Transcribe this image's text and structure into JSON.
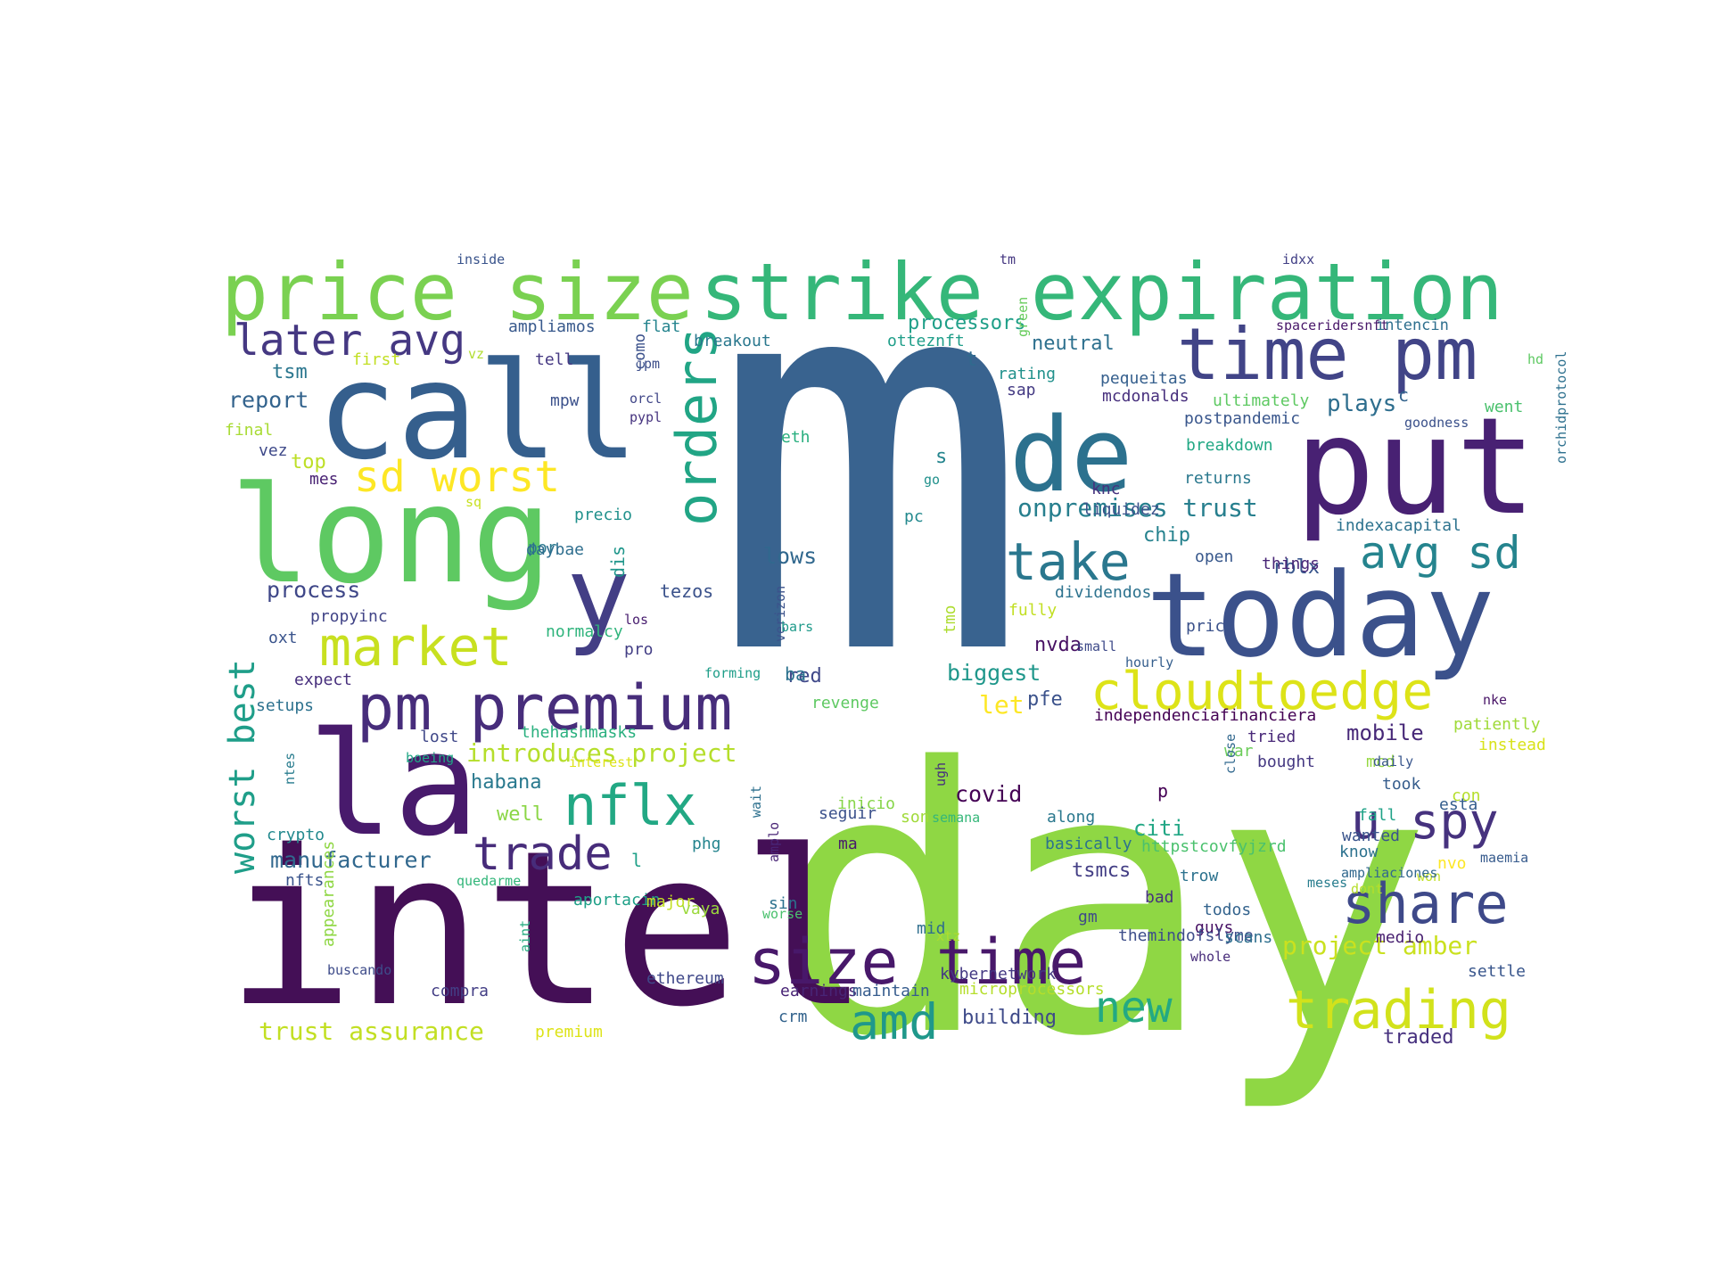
{
  "words": [
    {
      "text": "m",
      "color": "#39638f"
    },
    {
      "text": "day",
      "color": "#8fd744"
    },
    {
      "text": "intel",
      "color": "#440f56"
    },
    {
      "text": "call",
      "color": "#355f8d"
    },
    {
      "text": "long",
      "color": "#5ec962"
    },
    {
      "text": "la",
      "color": "#481a6c"
    },
    {
      "text": "put",
      "color": "#482173"
    },
    {
      "text": "today",
      "color": "#3b518b"
    },
    {
      "text": "de",
      "color": "#2c718e"
    },
    {
      "text": "y",
      "color": "#433e85"
    },
    {
      "text": "price size",
      "color": "#7ad151"
    },
    {
      "text": "strike expiration",
      "color": "#35b779"
    },
    {
      "text": "time pm",
      "color": "#414487"
    },
    {
      "text": "pm premium",
      "color": "#472d7b"
    },
    {
      "text": "size time",
      "color": "#48186a"
    },
    {
      "text": "market",
      "color": "#c8e020"
    },
    {
      "text": "orders",
      "color": "#21a585"
    },
    {
      "text": "cloudtoedge",
      "color": "#dde318"
    },
    {
      "text": "trading",
      "color": "#d2e21b"
    },
    {
      "text": "share",
      "color": "#3e4989"
    },
    {
      "text": "nflx",
      "color": "#22a884"
    },
    {
      "text": "trade",
      "color": "#472c7a"
    },
    {
      "text": "take",
      "color": "#2a778e"
    },
    {
      "text": "avg sd",
      "color": "#25848e"
    },
    {
      "text": "u spy",
      "color": "#46327e"
    },
    {
      "text": "amd",
      "color": "#1f988b"
    },
    {
      "text": "new",
      "color": "#23a983"
    },
    {
      "text": "later avg",
      "color": "#453882"
    },
    {
      "text": "sd worst",
      "color": "#fde725"
    },
    {
      "text": "worst best",
      "color": "#1f9e89"
    },
    {
      "text": "onpremises trust",
      "color": "#277f8e"
    },
    {
      "text": "introduces project",
      "color": "#b5de2b"
    },
    {
      "text": "project amber",
      "color": "#cae11f"
    },
    {
      "text": "trust assurance",
      "color": "#c2df23"
    },
    {
      "text": "manufacturer",
      "color": "#31688e"
    },
    {
      "text": "process",
      "color": "#3f4788"
    },
    {
      "text": "report",
      "color": "#33638d"
    },
    {
      "text": "tsm",
      "color": "#2a768e"
    },
    {
      "text": "top",
      "color": "#bddf26"
    },
    {
      "text": "processors",
      "color": "#1f9f88"
    },
    {
      "text": "neutral",
      "color": "#2d708e"
    },
    {
      "text": "covid",
      "color": "#440154"
    },
    {
      "text": "biggest",
      "color": "#1f978b"
    },
    {
      "text": "lows",
      "color": "#31688e"
    },
    {
      "text": "chip",
      "color": "#26828e"
    },
    {
      "text": "rblx",
      "color": "#39568c"
    },
    {
      "text": "nvda",
      "color": "#471063"
    },
    {
      "text": "pfe",
      "color": "#3b528b"
    },
    {
      "text": "let",
      "color": "#fde725"
    },
    {
      "text": "plays",
      "color": "#2e6e8e"
    },
    {
      "text": "mobile",
      "color": "#472878"
    },
    {
      "text": "habana",
      "color": "#29798e"
    },
    {
      "text": "well",
      "color": "#8bd646"
    },
    {
      "text": "citi",
      "color": "#22a785"
    },
    {
      "text": "red",
      "color": "#3f4889"
    },
    {
      "text": "tsmcs",
      "color": "#433e85"
    },
    {
      "text": "traded",
      "color": "#46307e"
    },
    {
      "text": "building",
      "color": "#3e4a89"
    },
    {
      "text": "ba",
      "color": "#2c728e"
    },
    {
      "text": "dis",
      "color": "#1f968b"
    },
    {
      "text": "tezos",
      "color": "#3b528b"
    },
    {
      "text": "t",
      "color": "#306a8e"
    },
    {
      "text": "s",
      "color": "#25858e"
    },
    {
      "text": "c",
      "color": "#33638d"
    },
    {
      "text": "p",
      "color": "#440154"
    },
    {
      "text": "l",
      "color": "#1fa088"
    },
    {
      "text": "inside",
      "color": "#3a548c"
    },
    {
      "text": "vz",
      "color": "#b0dd2f"
    },
    {
      "text": "tm",
      "color": "#453781"
    },
    {
      "text": "idxx",
      "color": "#424086"
    },
    {
      "text": "green",
      "color": "#67cc5c"
    },
    {
      "text": "spaceridersnft",
      "color": "#481769"
    },
    {
      "text": "intencin",
      "color": "#2e6f8e"
    },
    {
      "text": "ampliamos",
      "color": "#38598c"
    },
    {
      "text": "flat",
      "color": "#25848e"
    },
    {
      "text": "como",
      "color": "#3b518b"
    },
    {
      "text": "breakout",
      "color": "#2a788e"
    },
    {
      "text": "otteznft",
      "color": "#1f9e89"
    },
    {
      "text": "tell",
      "color": "#453882"
    },
    {
      "text": "first",
      "color": "#c2df23"
    },
    {
      "text": "jpm",
      "color": "#3d4e8a"
    },
    {
      "text": "rating",
      "color": "#21918c"
    },
    {
      "text": "sap",
      "color": "#443a83"
    },
    {
      "text": "pequeitas",
      "color": "#355f8d"
    },
    {
      "text": "hd",
      "color": "#5ec962"
    },
    {
      "text": "mpw",
      "color": "#3b518b"
    },
    {
      "text": "orcl",
      "color": "#404688"
    },
    {
      "text": "pypl",
      "color": "#46337f"
    },
    {
      "text": "mcdonalds",
      "color": "#472f7d"
    },
    {
      "text": "ultimately",
      "color": "#5ec962"
    },
    {
      "text": "went",
      "color": "#4ac16d"
    },
    {
      "text": "orchidprotocol",
      "color": "#2d708e"
    },
    {
      "text": "final",
      "color": "#a8db34"
    },
    {
      "text": "eth",
      "color": "#29af7f"
    },
    {
      "text": "postpandemic",
      "color": "#39568c"
    },
    {
      "text": "goodness",
      "color": "#3b518b"
    },
    {
      "text": "vez",
      "color": "#3e4989"
    },
    {
      "text": "breakdown",
      "color": "#22a884"
    },
    {
      "text": "mes",
      "color": "#482173"
    },
    {
      "text": "go",
      "color": "#21918c"
    },
    {
      "text": "knc",
      "color": "#46327e"
    },
    {
      "text": "returns",
      "color": "#2a788e"
    },
    {
      "text": "sq",
      "color": "#c8e020"
    },
    {
      "text": "liquidez",
      "color": "#3b528b"
    },
    {
      "text": "precio",
      "color": "#21918c"
    },
    {
      "text": "pc",
      "color": "#23898e"
    },
    {
      "text": "indexacapital",
      "color": "#2c728e"
    },
    {
      "text": "por",
      "color": "#2a788e"
    },
    {
      "text": "daybae",
      "color": "#2e6e8e"
    },
    {
      "text": "open",
      "color": "#38588c"
    },
    {
      "text": "things",
      "color": "#482576"
    },
    {
      "text": "verizon",
      "color": "#3b528b"
    },
    {
      "text": "fully",
      "color": "#c2df23"
    },
    {
      "text": "dividendos",
      "color": "#2c728e"
    },
    {
      "text": "los",
      "color": "#481d6f"
    },
    {
      "text": "bars",
      "color": "#1f9a8a"
    },
    {
      "text": "tmo",
      "color": "#addc30"
    },
    {
      "text": "propyinc",
      "color": "#414487"
    },
    {
      "text": "normalcy",
      "color": "#2fb47c"
    },
    {
      "text": "price",
      "color": "#3b528b"
    },
    {
      "text": "oxt",
      "color": "#3a548c"
    },
    {
      "text": "pro",
      "color": "#433e85"
    },
    {
      "text": "small",
      "color": "#3e4a89"
    },
    {
      "text": "hourly",
      "color": "#355e8d"
    },
    {
      "text": "forming",
      "color": "#1f9e89"
    },
    {
      "text": "expect",
      "color": "#472f7d"
    },
    {
      "text": "setups",
      "color": "#2c718e"
    },
    {
      "text": "revenge",
      "color": "#5ec962"
    },
    {
      "text": "independenciafinanciera",
      "color": "#440154"
    },
    {
      "text": "nke",
      "color": "#481467"
    },
    {
      "text": "thehashmasks",
      "color": "#2ab07f"
    },
    {
      "text": "patiently",
      "color": "#a0da39"
    },
    {
      "text": "lost",
      "color": "#3f4788"
    },
    {
      "text": "tried",
      "color": "#482878"
    },
    {
      "text": "war",
      "color": "#6ccd5a"
    },
    {
      "text": "instead",
      "color": "#d8e219"
    },
    {
      "text": "bought",
      "color": "#453882"
    },
    {
      "text": "ntes",
      "color": "#287c8e"
    },
    {
      "text": "boeing",
      "color": "#21a685"
    },
    {
      "text": "ugh",
      "color": "#46307e"
    },
    {
      "text": "close",
      "color": "#31688e"
    },
    {
      "text": "mcd",
      "color": "#95d840"
    },
    {
      "text": "interest",
      "color": "#dde318"
    },
    {
      "text": "daily",
      "color": "#39568c"
    },
    {
      "text": "took",
      "color": "#365d8d"
    },
    {
      "text": "con",
      "color": "#b5de2b"
    },
    {
      "text": "wait",
      "color": "#2d708e"
    },
    {
      "text": "inicio",
      "color": "#86d549"
    },
    {
      "text": "fall",
      "color": "#1fa287"
    },
    {
      "text": "esta",
      "color": "#355e8d"
    },
    {
      "text": "seguir",
      "color": "#3b518b"
    },
    {
      "text": "son",
      "color": "#a0da39"
    },
    {
      "text": "semana",
      "color": "#35b779"
    },
    {
      "text": "along",
      "color": "#2a788e"
    },
    {
      "text": "crypto",
      "color": "#23898e"
    },
    {
      "text": "ma",
      "color": "#481a6c"
    },
    {
      "text": "basically",
      "color": "#2c728e"
    },
    {
      "text": "wanted",
      "color": "#3a548c"
    },
    {
      "text": "phg",
      "color": "#25848e"
    },
    {
      "text": "httpstcovfyjzrd",
      "color": "#4ac16d"
    },
    {
      "text": "know",
      "color": "#2c718e"
    },
    {
      "text": "maemia",
      "color": "#375b8d"
    },
    {
      "text": "amplo",
      "color": "#482475"
    },
    {
      "text": "trow",
      "color": "#2c728e"
    },
    {
      "text": "won",
      "color": "#c0df25"
    },
    {
      "text": "nvo",
      "color": "#fde725"
    },
    {
      "text": "ampliaciones",
      "color": "#31688e"
    },
    {
      "text": "dont",
      "color": "#b5de2b"
    },
    {
      "text": "meses",
      "color": "#287d8e"
    },
    {
      "text": "nfts",
      "color": "#3a548c"
    },
    {
      "text": "quedarme",
      "color": "#32b67a"
    },
    {
      "text": "aportacin",
      "color": "#1fa088"
    },
    {
      "text": "major",
      "color": "#c2df23"
    },
    {
      "text": "sin",
      "color": "#2c718e"
    },
    {
      "text": "bad",
      "color": "#46327e"
    },
    {
      "text": "appearances",
      "color": "#8fd744"
    },
    {
      "text": "vaya",
      "color": "#9bd93c"
    },
    {
      "text": "todos",
      "color": "#33638d"
    },
    {
      "text": "worse",
      "color": "#4ac16d"
    },
    {
      "text": "gm",
      "color": "#3e4a89"
    },
    {
      "text": "guys",
      "color": "#471164"
    },
    {
      "text": "mid",
      "color": "#2e6e8e"
    },
    {
      "text": "themindofslyme",
      "color": "#3d4d8a"
    },
    {
      "text": "scans",
      "color": "#2e6f8e"
    },
    {
      "text": "medio",
      "color": "#482071"
    },
    {
      "text": "xtz",
      "color": "#addc30"
    },
    {
      "text": "whole",
      "color": "#472c7a"
    },
    {
      "text": "aint",
      "color": "#27ad81"
    },
    {
      "text": "buscando",
      "color": "#3e4c8a"
    },
    {
      "text": "ethereum",
      "color": "#3f4889"
    },
    {
      "text": "kybernetwork",
      "color": "#443983"
    },
    {
      "text": "settle",
      "color": "#39568c"
    },
    {
      "text": "compra",
      "color": "#433e85"
    },
    {
      "text": "earnings",
      "color": "#482475"
    },
    {
      "text": "maintain",
      "color": "#365c8d"
    },
    {
      "text": "microprocessors",
      "color": "#b5de2b"
    },
    {
      "text": "crm",
      "color": "#33638d"
    },
    {
      "text": "premium",
      "color": "#dde318"
    }
  ]
}
